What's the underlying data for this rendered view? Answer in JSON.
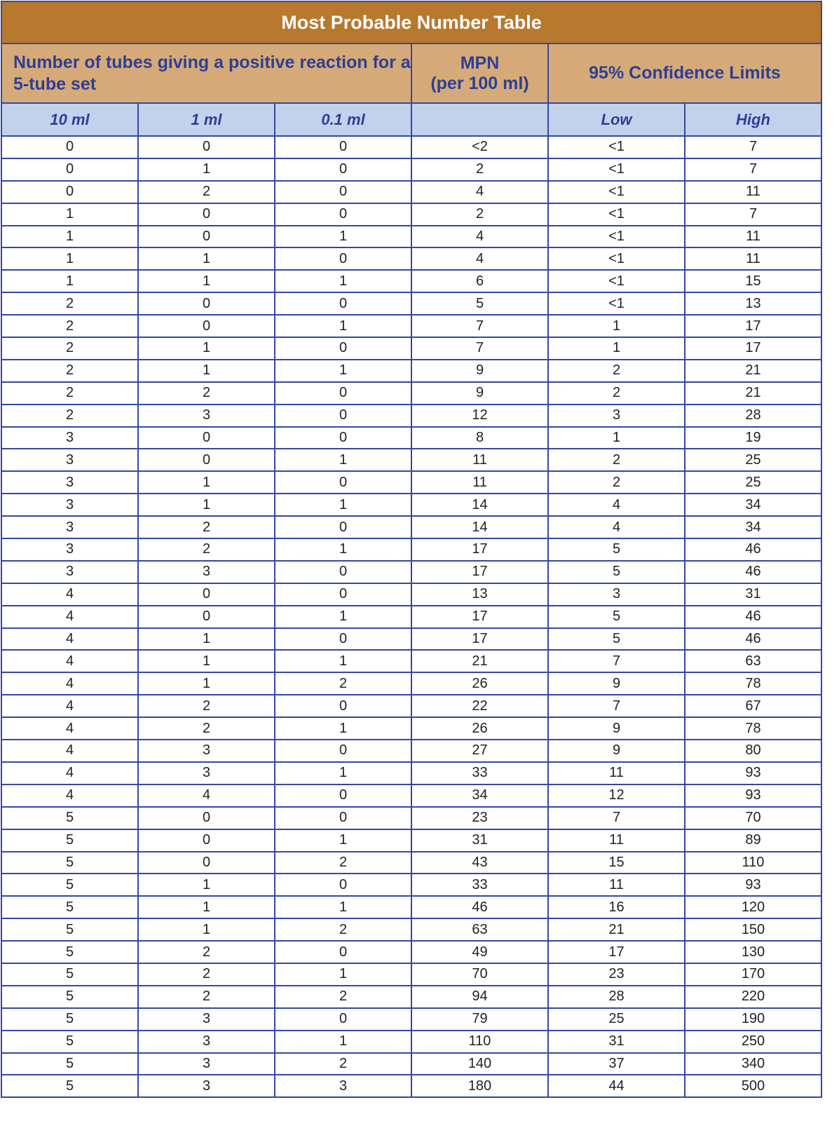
{
  "title": "Most Probable Number Table",
  "headers": {
    "tubes": "Number of tubes giving a positive reaction for a 5-tube set",
    "mpn_line1": "MPN",
    "mpn_line2": "(per 100 ml)",
    "confidence": "95% Confidence Limits"
  },
  "subheaders": [
    "10 ml",
    "1 ml",
    "0.1 ml",
    "",
    "Low",
    "High"
  ],
  "colors": {
    "title_bg": "#b7792e",
    "header_bg": "#d5aa78",
    "subheader_bg": "#c2d2ec",
    "border": "#3548a2",
    "header_text": "#2d3f96"
  },
  "rows": [
    [
      "0",
      "0",
      "0",
      "<2",
      "<1",
      "7"
    ],
    [
      "0",
      "1",
      "0",
      "2",
      "<1",
      "7"
    ],
    [
      "0",
      "2",
      "0",
      "4",
      "<1",
      "11"
    ],
    [
      "1",
      "0",
      "0",
      "2",
      "<1",
      "7"
    ],
    [
      "1",
      "0",
      "1",
      "4",
      "<1",
      "11"
    ],
    [
      "1",
      "1",
      "0",
      "4",
      "<1",
      "11"
    ],
    [
      "1",
      "1",
      "1",
      "6",
      "<1",
      "15"
    ],
    [
      "2",
      "0",
      "0",
      "5",
      "<1",
      "13"
    ],
    [
      "2",
      "0",
      "1",
      "7",
      "1",
      "17"
    ],
    [
      "2",
      "1",
      "0",
      "7",
      "1",
      "17"
    ],
    [
      "2",
      "1",
      "1",
      "9",
      "2",
      "21"
    ],
    [
      "2",
      "2",
      "0",
      "9",
      "2",
      "21"
    ],
    [
      "2",
      "3",
      "0",
      "12",
      "3",
      "28"
    ],
    [
      "3",
      "0",
      "0",
      "8",
      "1",
      "19"
    ],
    [
      "3",
      "0",
      "1",
      "11",
      "2",
      "25"
    ],
    [
      "3",
      "1",
      "0",
      "11",
      "2",
      "25"
    ],
    [
      "3",
      "1",
      "1",
      "14",
      "4",
      "34"
    ],
    [
      "3",
      "2",
      "0",
      "14",
      "4",
      "34"
    ],
    [
      "3",
      "2",
      "1",
      "17",
      "5",
      "46"
    ],
    [
      "3",
      "3",
      "0",
      "17",
      "5",
      "46"
    ],
    [
      "4",
      "0",
      "0",
      "13",
      "3",
      "31"
    ],
    [
      "4",
      "0",
      "1",
      "17",
      "5",
      "46"
    ],
    [
      "4",
      "1",
      "0",
      "17",
      "5",
      "46"
    ],
    [
      "4",
      "1",
      "1",
      "21",
      "7",
      "63"
    ],
    [
      "4",
      "1",
      "2",
      "26",
      "9",
      "78"
    ],
    [
      "4",
      "2",
      "0",
      "22",
      "7",
      "67"
    ],
    [
      "4",
      "2",
      "1",
      "26",
      "9",
      "78"
    ],
    [
      "4",
      "3",
      "0",
      "27",
      "9",
      "80"
    ],
    [
      "4",
      "3",
      "1",
      "33",
      "11",
      "93"
    ],
    [
      "4",
      "4",
      "0",
      "34",
      "12",
      "93"
    ],
    [
      "5",
      "0",
      "0",
      "23",
      "7",
      "70"
    ],
    [
      "5",
      "0",
      "1",
      "31",
      "11",
      "89"
    ],
    [
      "5",
      "0",
      "2",
      "43",
      "15",
      "110"
    ],
    [
      "5",
      "1",
      "0",
      "33",
      "11",
      "93"
    ],
    [
      "5",
      "1",
      "1",
      "46",
      "16",
      "120"
    ],
    [
      "5",
      "1",
      "2",
      "63",
      "21",
      "150"
    ],
    [
      "5",
      "2",
      "0",
      "49",
      "17",
      "130"
    ],
    [
      "5",
      "2",
      "1",
      "70",
      "23",
      "170"
    ],
    [
      "5",
      "2",
      "2",
      "94",
      "28",
      "220"
    ],
    [
      "5",
      "3",
      "0",
      "79",
      "25",
      "190"
    ],
    [
      "5",
      "3",
      "1",
      "110",
      "31",
      "250"
    ],
    [
      "5",
      "3",
      "2",
      "140",
      "37",
      "340"
    ],
    [
      "5",
      "3",
      "3",
      "180",
      "44",
      "500"
    ]
  ]
}
